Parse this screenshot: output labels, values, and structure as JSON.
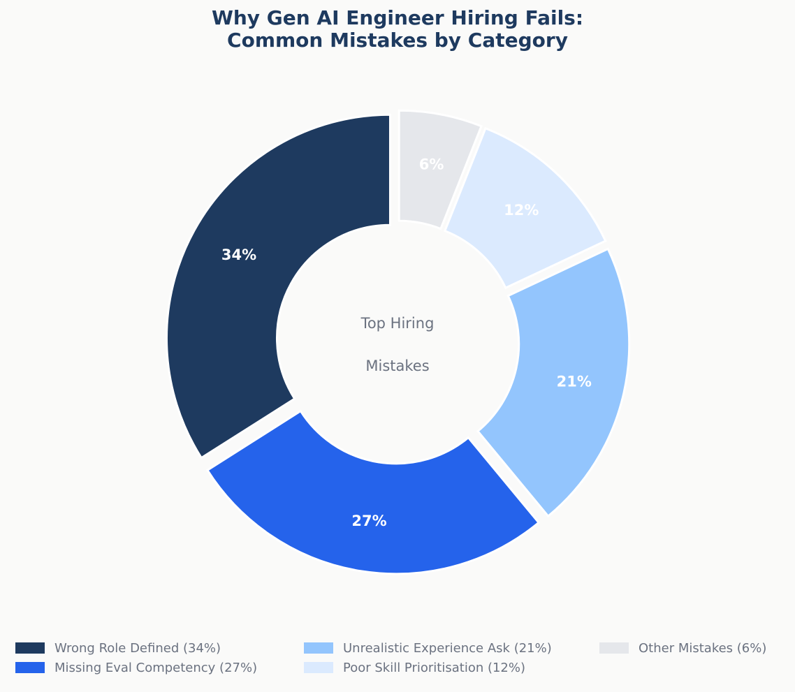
{
  "chart_data": {
    "type": "pie",
    "variant": "donut",
    "title_lines": [
      "Why Gen AI Engineer Hiring Fails:",
      "Common Mistakes by Category"
    ],
    "center_label_lines": [
      "Top Hiring",
      "Mistakes"
    ],
    "slices": [
      {
        "label": "Wrong Role Defined",
        "value": 34,
        "color": "#1E3A5F",
        "value_label": "34%",
        "legend_text": "Wrong Role Defined (34%)"
      },
      {
        "label": "Missing Eval Competency",
        "value": 27,
        "color": "#2563EB",
        "value_label": "27%",
        "legend_text": "Missing Eval Competency (27%)"
      },
      {
        "label": "Unrealistic Experience Ask",
        "value": 21,
        "color": "#93C5FD",
        "value_label": "21%",
        "legend_text": "Unrealistic Experience Ask (21%)"
      },
      {
        "label": "Poor Skill Prioritisation",
        "value": 12,
        "color": "#DBEAFE",
        "value_label": "12%",
        "legend_text": "Poor Skill Prioritisation (12%)"
      },
      {
        "label": "Other Mistakes",
        "value": 6,
        "color": "#E5E7EB",
        "value_label": "6%",
        "legend_text": "Other Mistakes (6%)"
      }
    ],
    "start_angle": "12 o'clock",
    "direction": "counterclockwise",
    "legend_placement": "bottom"
  }
}
